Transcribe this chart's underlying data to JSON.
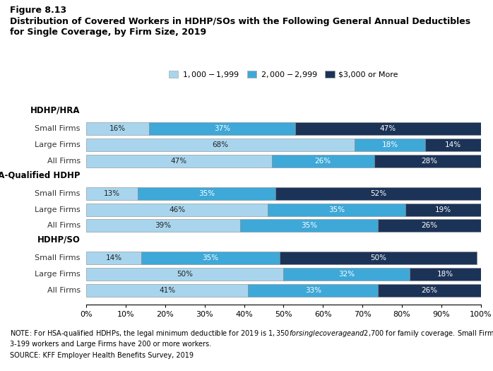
{
  "title_line1": "Figure 8.13",
  "title_line2": "Distribution of Covered Workers in HDHP/SOs with the Following General Annual Deductibles",
  "title_line3": "for Single Coverage, by Firm Size, 2019",
  "legend_labels": [
    "$1,000 - $1,999",
    "$2,000 - $2,999",
    "$3,000 or More"
  ],
  "colors": [
    "#a8d5ed",
    "#3ea8d8",
    "#1c3358"
  ],
  "section_labels": [
    "HDHP/HRA",
    "HSA-Qualified HDHP",
    "HDHP/SO"
  ],
  "bar_labels": [
    [
      "Small Firms",
      "Large Firms",
      "All Firms"
    ],
    [
      "Small Firms",
      "Large Firms",
      "All Firms"
    ],
    [
      "Small Firms",
      "Large Firms",
      "All Firms"
    ]
  ],
  "data": [
    [
      16,
      37,
      47
    ],
    [
      68,
      18,
      14
    ],
    [
      47,
      26,
      28
    ],
    [
      13,
      35,
      52
    ],
    [
      46,
      35,
      19
    ],
    [
      39,
      35,
      26
    ],
    [
      14,
      35,
      50
    ],
    [
      50,
      32,
      18
    ],
    [
      41,
      33,
      26
    ]
  ],
  "note_line1": "NOTE: For HSA-qualified HDHPs, the legal minimum deductible for 2019 is $1,350 for single coverage and $2,700 for family coverage. Small Firms have",
  "note_line2": "3-199 workers and Large Firms have 200 or more workers.",
  "note_line3": "SOURCE: KFF Employer Health Benefits Survey, 2019",
  "bar_height": 0.55,
  "xticks": [
    0,
    10,
    20,
    30,
    40,
    50,
    60,
    70,
    80,
    90,
    100
  ]
}
